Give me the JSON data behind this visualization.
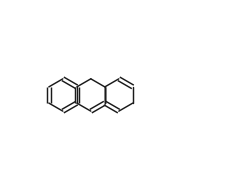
{
  "bg_color": "#ffffff",
  "line_color": "#1a1a1a",
  "lw": 1.05,
  "fs": 6.8,
  "fs_small": 5.8,
  "bl": 0.072
}
